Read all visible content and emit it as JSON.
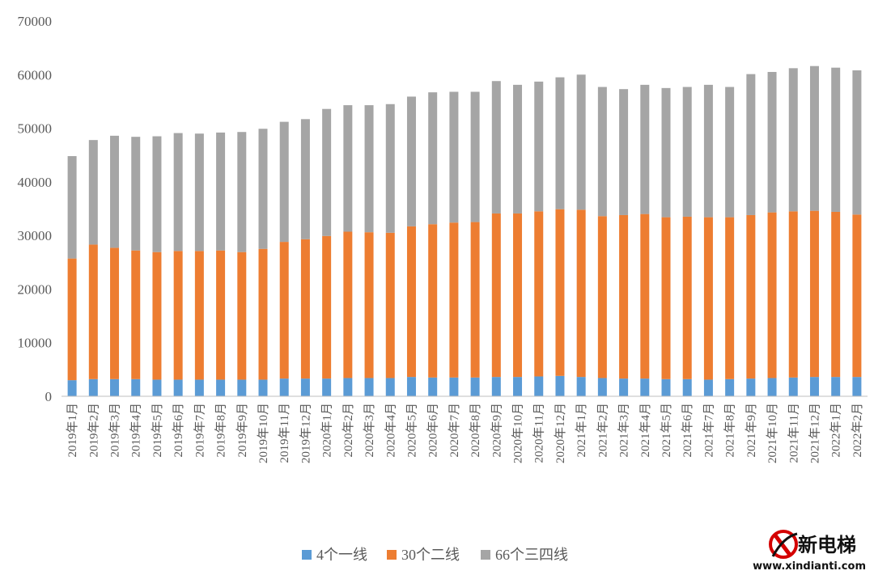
{
  "chart_data": {
    "type": "bar",
    "stacked": true,
    "categories": [
      "2019年1月",
      "2019年2月",
      "2019年3月",
      "2019年4月",
      "2019年5月",
      "2019年6月",
      "2019年7月",
      "2019年8月",
      "2019年9月",
      "2019年10月",
      "2019年11月",
      "2019年12月",
      "2020年1月",
      "2020年2月",
      "2020年3月",
      "2020年4月",
      "2020年5月",
      "2020年6月",
      "2020年7月",
      "2020年8月",
      "2020年9月",
      "2020年10月",
      "2020年11月",
      "2020年12月",
      "2021年1月",
      "2021年2月",
      "2021年3月",
      "2021年4月",
      "2021年5月",
      "2021年6月",
      "2021年7月",
      "2021年8月",
      "2021年9月",
      "2021年10月",
      "2021年11月",
      "2021年12月",
      "2022年1月",
      "2022年2月"
    ],
    "series": [
      {
        "name": "4个一线",
        "color": "#5B9BD5",
        "values": [
          3000,
          3200,
          3200,
          3200,
          3100,
          3100,
          3100,
          3100,
          3100,
          3100,
          3300,
          3300,
          3300,
          3400,
          3400,
          3400,
          3600,
          3500,
          3500,
          3500,
          3600,
          3600,
          3700,
          3800,
          3600,
          3400,
          3300,
          3300,
          3200,
          3200,
          3100,
          3200,
          3300,
          3400,
          3500,
          3600,
          3600,
          3600
        ]
      },
      {
        "name": "30个二线",
        "color": "#ED7D31",
        "values": [
          22700,
          25100,
          24500,
          24000,
          23800,
          24000,
          24000,
          24100,
          23800,
          24400,
          25500,
          26000,
          26600,
          27300,
          27200,
          27100,
          28100,
          28600,
          28900,
          29000,
          30500,
          30500,
          30800,
          31100,
          31200,
          30200,
          30500,
          30700,
          30200,
          30300,
          30300,
          30200,
          30500,
          30900,
          31000,
          31000,
          30800,
          30300
        ]
      },
      {
        "name": "66个三四线",
        "color": "#A5A5A5",
        "values": [
          19100,
          19500,
          20900,
          21200,
          21600,
          22000,
          21900,
          22000,
          22400,
          22400,
          22400,
          22400,
          23700,
          23600,
          23700,
          24000,
          24200,
          24600,
          24400,
          24300,
          24700,
          24000,
          24200,
          24600,
          25200,
          24100,
          23500,
          24100,
          24100,
          24200,
          24700,
          24300,
          26300,
          26200,
          26700,
          27000,
          26900,
          26900
        ]
      }
    ],
    "ylim": [
      0,
      70000
    ],
    "yticks": [
      "0",
      "10000",
      "20000",
      "30000",
      "40000",
      "50000",
      "60000",
      "70000"
    ],
    "grid": false,
    "legend_position": "bottom"
  },
  "watermark": {
    "name": "新电梯",
    "url": "www.xindianti.com"
  }
}
